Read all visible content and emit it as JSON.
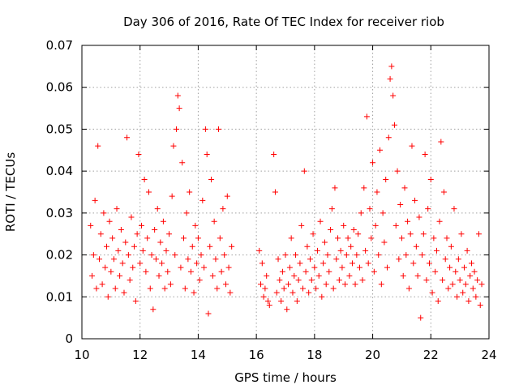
{
  "chart_data": {
    "type": "scatter",
    "title": "Day 306 of 2016, Rate Of TEC Index for receiver riob",
    "xlabel": "GPS time / hours",
    "ylabel": "ROTI / TECUs",
    "xlim": [
      10,
      24
    ],
    "ylim": [
      0,
      0.07
    ],
    "xticks": [
      10,
      12,
      14,
      16,
      18,
      20,
      22,
      24
    ],
    "xtick_labels": [
      "10",
      "12",
      "14",
      "16",
      "18",
      "20",
      "22",
      "24"
    ],
    "yticks": [
      0,
      0.01,
      0.02,
      0.03,
      0.04,
      0.05,
      0.06,
      0.07
    ],
    "ytick_labels": [
      "0",
      "0.01",
      "0.02",
      "0.03",
      "0.04",
      "0.05",
      "0.06",
      "0.07"
    ],
    "grid": true,
    "marker": "+",
    "color": "#ff0000",
    "series": [
      {
        "name": "ROTI",
        "points": [
          [
            10.3,
            0.027
          ],
          [
            10.35,
            0.015
          ],
          [
            10.4,
            0.02
          ],
          [
            10.45,
            0.033
          ],
          [
            10.5,
            0.012
          ],
          [
            10.55,
            0.046
          ],
          [
            10.6,
            0.019
          ],
          [
            10.65,
            0.025
          ],
          [
            10.7,
            0.013
          ],
          [
            10.75,
            0.03
          ],
          [
            10.8,
            0.017
          ],
          [
            10.85,
            0.022
          ],
          [
            10.9,
            0.01
          ],
          [
            10.95,
            0.028
          ],
          [
            11.0,
            0.016
          ],
          [
            11.05,
            0.024
          ],
          [
            11.1,
            0.019
          ],
          [
            11.15,
            0.012
          ],
          [
            11.2,
            0.031
          ],
          [
            11.25,
            0.021
          ],
          [
            11.3,
            0.015
          ],
          [
            11.35,
            0.026
          ],
          [
            11.4,
            0.018
          ],
          [
            11.45,
            0.011
          ],
          [
            11.5,
            0.023
          ],
          [
            11.55,
            0.048
          ],
          [
            11.6,
            0.02
          ],
          [
            11.65,
            0.014
          ],
          [
            11.7,
            0.029
          ],
          [
            11.75,
            0.017
          ],
          [
            11.8,
            0.022
          ],
          [
            11.85,
            0.009
          ],
          [
            11.9,
            0.025
          ],
          [
            11.95,
            0.044
          ],
          [
            12.0,
            0.018
          ],
          [
            12.05,
            0.027
          ],
          [
            12.1,
            0.021
          ],
          [
            12.15,
            0.038
          ],
          [
            12.2,
            0.016
          ],
          [
            12.25,
            0.024
          ],
          [
            12.3,
            0.035
          ],
          [
            12.35,
            0.012
          ],
          [
            12.4,
            0.02
          ],
          [
            12.45,
            0.007
          ],
          [
            12.5,
            0.026
          ],
          [
            12.55,
            0.019
          ],
          [
            12.6,
            0.031
          ],
          [
            12.65,
            0.015
          ],
          [
            12.7,
            0.023
          ],
          [
            12.75,
            0.018
          ],
          [
            12.8,
            0.028
          ],
          [
            12.85,
            0.012
          ],
          [
            12.9,
            0.021
          ],
          [
            12.95,
            0.016
          ],
          [
            13.0,
            0.025
          ],
          [
            13.05,
            0.013
          ],
          [
            13.1,
            0.034
          ],
          [
            13.15,
            0.046
          ],
          [
            13.2,
            0.02
          ],
          [
            13.25,
            0.05
          ],
          [
            13.3,
            0.058
          ],
          [
            13.35,
            0.055
          ],
          [
            13.4,
            0.017
          ],
          [
            13.45,
            0.042
          ],
          [
            13.5,
            0.024
          ],
          [
            13.55,
            0.012
          ],
          [
            13.6,
            0.03
          ],
          [
            13.65,
            0.019
          ],
          [
            13.7,
            0.035
          ],
          [
            13.75,
            0.016
          ],
          [
            13.8,
            0.022
          ],
          [
            13.85,
            0.011
          ],
          [
            13.9,
            0.027
          ],
          [
            13.95,
            0.018
          ],
          [
            14.0,
            0.024
          ],
          [
            14.05,
            0.014
          ],
          [
            14.1,
            0.02
          ],
          [
            14.15,
            0.033
          ],
          [
            14.2,
            0.017
          ],
          [
            14.25,
            0.05
          ],
          [
            14.3,
            0.044
          ],
          [
            14.35,
            0.006
          ],
          [
            14.4,
            0.022
          ],
          [
            14.45,
            0.038
          ],
          [
            14.5,
            0.015
          ],
          [
            14.55,
            0.028
          ],
          [
            14.6,
            0.019
          ],
          [
            14.65,
            0.012
          ],
          [
            14.7,
            0.05
          ],
          [
            14.75,
            0.024
          ],
          [
            14.8,
            0.016
          ],
          [
            14.85,
            0.031
          ],
          [
            14.9,
            0.02
          ],
          [
            14.95,
            0.013
          ],
          [
            15.0,
            0.034
          ],
          [
            15.05,
            0.017
          ],
          [
            15.1,
            0.011
          ],
          [
            15.15,
            0.022
          ],
          [
            16.1,
            0.021
          ],
          [
            16.15,
            0.013
          ],
          [
            16.2,
            0.018
          ],
          [
            16.25,
            0.01
          ],
          [
            16.3,
            0.012
          ],
          [
            16.35,
            0.015
          ],
          [
            16.4,
            0.009
          ],
          [
            16.45,
            0.008
          ],
          [
            16.6,
            0.044
          ],
          [
            16.65,
            0.035
          ],
          [
            16.7,
            0.011
          ],
          [
            16.75,
            0.019
          ],
          [
            16.8,
            0.014
          ],
          [
            16.85,
            0.009
          ],
          [
            16.9,
            0.016
          ],
          [
            16.95,
            0.012
          ],
          [
            17.0,
            0.02
          ],
          [
            17.05,
            0.007
          ],
          [
            17.1,
            0.013
          ],
          [
            17.15,
            0.017
          ],
          [
            17.2,
            0.024
          ],
          [
            17.25,
            0.011
          ],
          [
            17.3,
            0.015
          ],
          [
            17.35,
            0.02
          ],
          [
            17.4,
            0.009
          ],
          [
            17.45,
            0.014
          ],
          [
            17.5,
            0.018
          ],
          [
            17.55,
            0.027
          ],
          [
            17.6,
            0.012
          ],
          [
            17.65,
            0.04
          ],
          [
            17.7,
            0.016
          ],
          [
            17.75,
            0.022
          ],
          [
            17.8,
            0.011
          ],
          [
            17.85,
            0.019
          ],
          [
            17.9,
            0.014
          ],
          [
            17.95,
            0.025
          ],
          [
            18.0,
            0.017
          ],
          [
            18.05,
            0.012
          ],
          [
            18.1,
            0.021
          ],
          [
            18.15,
            0.015
          ],
          [
            18.2,
            0.028
          ],
          [
            18.25,
            0.01
          ],
          [
            18.3,
            0.018
          ],
          [
            18.35,
            0.023
          ],
          [
            18.4,
            0.013
          ],
          [
            18.45,
            0.02
          ],
          [
            18.5,
            0.016
          ],
          [
            18.55,
            0.026
          ],
          [
            18.6,
            0.031
          ],
          [
            18.65,
            0.012
          ],
          [
            18.7,
            0.036
          ],
          [
            18.75,
            0.019
          ],
          [
            18.8,
            0.024
          ],
          [
            18.85,
            0.014
          ],
          [
            18.9,
            0.021
          ],
          [
            18.95,
            0.017
          ],
          [
            19.0,
            0.027
          ],
          [
            19.05,
            0.013
          ],
          [
            19.1,
            0.02
          ],
          [
            19.15,
            0.024
          ],
          [
            19.2,
            0.015
          ],
          [
            19.25,
            0.022
          ],
          [
            19.3,
            0.018
          ],
          [
            19.35,
            0.026
          ],
          [
            19.4,
            0.013
          ],
          [
            19.45,
            0.02
          ],
          [
            19.5,
            0.025
          ],
          [
            19.55,
            0.017
          ],
          [
            19.6,
            0.03
          ],
          [
            19.65,
            0.014
          ],
          [
            19.7,
            0.036
          ],
          [
            19.75,
            0.021
          ],
          [
            19.8,
            0.053
          ],
          [
            19.85,
            0.018
          ],
          [
            19.9,
            0.031
          ],
          [
            19.95,
            0.024
          ],
          [
            20.0,
            0.042
          ],
          [
            20.05,
            0.016
          ],
          [
            20.1,
            0.027
          ],
          [
            20.15,
            0.035
          ],
          [
            20.2,
            0.02
          ],
          [
            20.25,
            0.045
          ],
          [
            20.3,
            0.013
          ],
          [
            20.35,
            0.03
          ],
          [
            20.4,
            0.023
          ],
          [
            20.45,
            0.038
          ],
          [
            20.5,
            0.017
          ],
          [
            20.55,
            0.048
          ],
          [
            20.6,
            0.062
          ],
          [
            20.65,
            0.065
          ],
          [
            20.7,
            0.058
          ],
          [
            20.75,
            0.051
          ],
          [
            20.8,
            0.027
          ],
          [
            20.85,
            0.04
          ],
          [
            20.9,
            0.019
          ],
          [
            20.95,
            0.032
          ],
          [
            21.0,
            0.024
          ],
          [
            21.05,
            0.015
          ],
          [
            21.1,
            0.036
          ],
          [
            21.15,
            0.02
          ],
          [
            21.2,
            0.028
          ],
          [
            21.25,
            0.012
          ],
          [
            21.3,
            0.025
          ],
          [
            21.35,
            0.046
          ],
          [
            21.4,
            0.018
          ],
          [
            21.45,
            0.033
          ],
          [
            21.5,
            0.022
          ],
          [
            21.55,
            0.015
          ],
          [
            21.6,
            0.029
          ],
          [
            21.65,
            0.005
          ],
          [
            21.7,
            0.02
          ],
          [
            21.75,
            0.025
          ],
          [
            21.8,
            0.044
          ],
          [
            21.85,
            0.014
          ],
          [
            21.9,
            0.031
          ],
          [
            21.95,
            0.018
          ],
          [
            22.0,
            0.038
          ],
          [
            22.05,
            0.011
          ],
          [
            22.1,
            0.024
          ],
          [
            22.15,
            0.016
          ],
          [
            22.2,
            0.021
          ],
          [
            22.25,
            0.009
          ],
          [
            22.3,
            0.028
          ],
          [
            22.35,
            0.047
          ],
          [
            22.4,
            0.014
          ],
          [
            22.45,
            0.035
          ],
          [
            22.5,
            0.019
          ],
          [
            22.55,
            0.024
          ],
          [
            22.6,
            0.012
          ],
          [
            22.65,
            0.017
          ],
          [
            22.7,
            0.022
          ],
          [
            22.75,
            0.013
          ],
          [
            22.8,
            0.031
          ],
          [
            22.85,
            0.016
          ],
          [
            22.9,
            0.01
          ],
          [
            22.95,
            0.019
          ],
          [
            23.0,
            0.014
          ],
          [
            23.05,
            0.025
          ],
          [
            23.1,
            0.011
          ],
          [
            23.15,
            0.017
          ],
          [
            23.2,
            0.013
          ],
          [
            23.25,
            0.021
          ],
          [
            23.3,
            0.009
          ],
          [
            23.35,
            0.015
          ],
          [
            23.4,
            0.018
          ],
          [
            23.45,
            0.012
          ],
          [
            23.5,
            0.016
          ],
          [
            23.55,
            0.01
          ],
          [
            23.6,
            0.014
          ],
          [
            23.65,
            0.025
          ],
          [
            23.7,
            0.008
          ],
          [
            23.75,
            0.013
          ]
        ]
      }
    ]
  }
}
